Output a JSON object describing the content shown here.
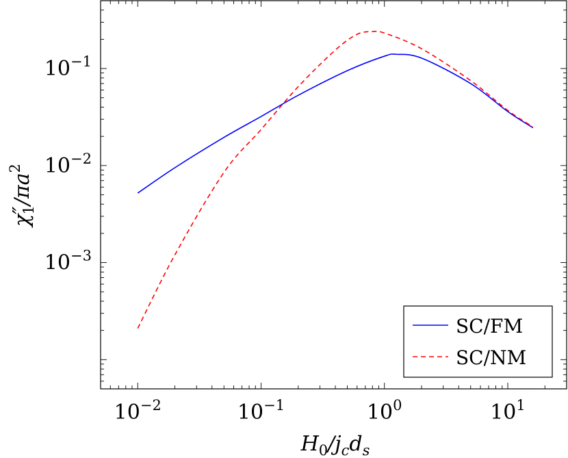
{
  "chart_data": {
    "type": "line",
    "xscale": "log",
    "yscale": "log",
    "xlim": [
      0.005,
      30
    ],
    "ylim": [
      5e-05,
      0.5
    ],
    "xlabel_base": "H",
    "xlabel_base_sub": "0",
    "xlabel_mid": "/j",
    "xlabel_mid_sub": "c",
    "xlabel_end": "d",
    "xlabel_end_sub": "s",
    "ylabel_base": "χ",
    "ylabel_prime": "″",
    "ylabel_sub": "1",
    "ylabel_rest": "/πa",
    "ylabel_sup": "2",
    "x_ticks": [
      {
        "base": "10",
        "exp": "−2",
        "value": 0.01
      },
      {
        "base": "10",
        "exp": "−1",
        "value": 0.1
      },
      {
        "base": "10",
        "exp": "0",
        "value": 1
      },
      {
        "base": "10",
        "exp": "1",
        "value": 10
      }
    ],
    "y_ticks": [
      {
        "base": "10",
        "exp": "−3",
        "value": 0.001
      },
      {
        "base": "10",
        "exp": "−2",
        "value": 0.01
      },
      {
        "base": "10",
        "exp": "−1",
        "value": 0.1
      }
    ],
    "legend_position": "bottom-right",
    "series": [
      {
        "name": "SC/FM",
        "color": "#0000ff",
        "dash": "solid",
        "points": [
          [
            0.01,
            0.0052
          ],
          [
            0.02,
            0.0095
          ],
          [
            0.05,
            0.0195
          ],
          [
            0.1,
            0.032
          ],
          [
            0.2,
            0.053
          ],
          [
            0.5,
            0.095
          ],
          [
            1.0,
            0.134
          ],
          [
            1.25,
            0.14
          ],
          [
            2.0,
            0.128
          ],
          [
            5.0,
            0.07
          ],
          [
            10.0,
            0.036
          ],
          [
            16.0,
            0.0245
          ]
        ]
      },
      {
        "name": "SC/NM",
        "color": "#ff0000",
        "dash": "dashed",
        "points": [
          [
            0.01,
            0.00021
          ],
          [
            0.02,
            0.0012
          ],
          [
            0.05,
            0.0085
          ],
          [
            0.1,
            0.0235
          ],
          [
            0.2,
            0.065
          ],
          [
            0.4,
            0.155
          ],
          [
            0.6,
            0.225
          ],
          [
            0.8,
            0.24
          ],
          [
            1.0,
            0.232
          ],
          [
            2.0,
            0.16
          ],
          [
            5.0,
            0.075
          ],
          [
            10.0,
            0.037
          ],
          [
            16.0,
            0.025
          ]
        ]
      }
    ]
  }
}
